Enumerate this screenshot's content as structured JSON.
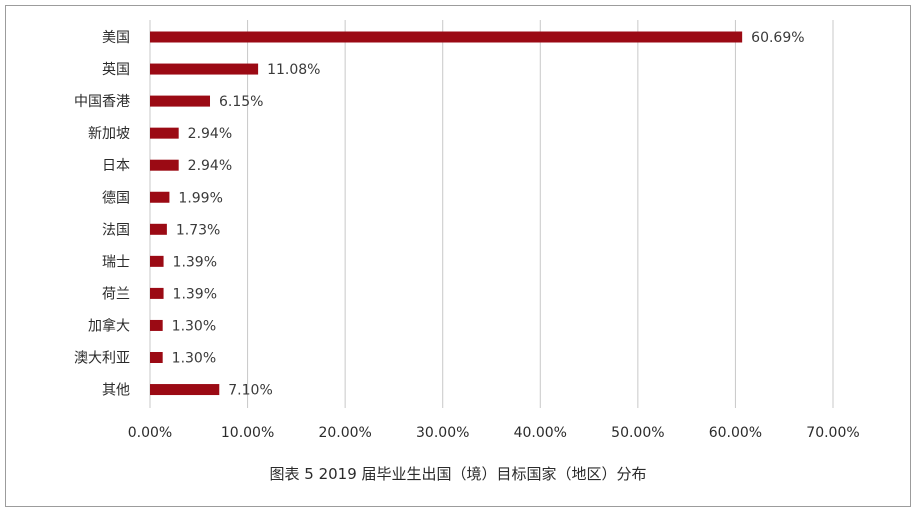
{
  "chart_data": {
    "type": "bar",
    "orientation": "horizontal",
    "title": "图表 5 2019 届毕业生出国（境）目标国家（地区）分布",
    "categories": [
      "美国",
      "英国",
      "中国香港",
      "新加坡",
      "日本",
      "德国",
      "法国",
      "瑞士",
      "荷兰",
      "加拿大",
      "澳大利亚",
      "其他"
    ],
    "values": [
      60.69,
      11.08,
      6.15,
      2.94,
      2.94,
      1.99,
      1.73,
      1.39,
      1.39,
      1.3,
      1.3,
      7.1
    ],
    "value_labels": [
      "60.69%",
      "11.08%",
      "6.15%",
      "2.94%",
      "2.94%",
      "1.99%",
      "1.73%",
      "1.39%",
      "1.39%",
      "1.30%",
      "1.30%",
      "7.10%"
    ],
    "xlim": [
      0,
      70
    ],
    "xticks": [
      0,
      10,
      20,
      30,
      40,
      50,
      60,
      70
    ],
    "xtick_labels": [
      "0.00%",
      "10.00%",
      "20.00%",
      "30.00%",
      "40.00%",
      "50.00%",
      "60.00%",
      "70.00%"
    ],
    "xlabel": "",
    "ylabel": "",
    "grid": "vertical",
    "legend": "none",
    "bar_color": "#9b0a14",
    "grid_color": "#c8c8c8"
  }
}
